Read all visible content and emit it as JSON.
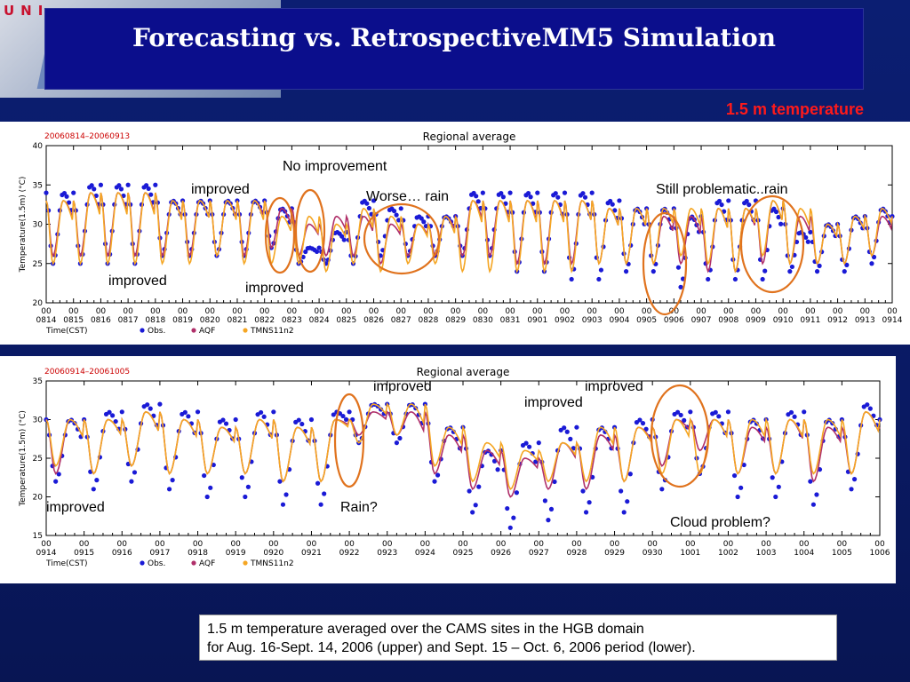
{
  "slide": {
    "title": "Forecasting vs. RetrospectiveMM5 Simulation",
    "subtitle": "1.5 m temperature",
    "logo_text": "UNI",
    "caption_line1": "1.5 m temperature averaged over the CAMS sites in the HGB domain",
    "caption_line2": "for  Aug. 16-Sept. 14, 2006  (upper) and Sept. 15 – Oct. 6, 2006 period (lower)."
  },
  "upper": {
    "annotations": [
      "No improvement",
      "improved",
      "Worse… rain",
      "Still problematic..rain",
      "improved",
      "improved"
    ]
  },
  "lower": {
    "annotations": [
      "improved",
      "improved",
      "improved",
      "improved",
      "Rain?",
      "Cloud problem?"
    ]
  },
  "colors": {
    "obs": "#1a1ad6",
    "aqf": "#b0306a",
    "tmns": "#f5a623",
    "circle": "#e0731e",
    "subtitle": "#ff1a1a"
  },
  "chart_data": [
    {
      "type": "line",
      "date_range": "20060814–20060913",
      "title": "Regional average",
      "xlabel": "Time(CST)",
      "ylabel": "Temperature(1.5m) (°C)",
      "ylim": [
        20,
        40
      ],
      "yticks": [
        20,
        25,
        30,
        35,
        40
      ],
      "xticks": [
        "0814",
        "0815",
        "0816",
        "0817",
        "0818",
        "0819",
        "0820",
        "0821",
        "0822",
        "0823",
        "0824",
        "0825",
        "0826",
        "0827",
        "0828",
        "0829",
        "0830",
        "0831",
        "0901",
        "0902",
        "0903",
        "0904",
        "0905",
        "0906",
        "0907",
        "0908",
        "0909",
        "0910",
        "0911",
        "0912",
        "0913",
        "0914"
      ],
      "xtick_hour": "00",
      "legend": [
        "Obs.",
        "AQF",
        "TMNS11n2"
      ],
      "series": [
        {
          "name": "Obs.",
          "daily_max": [
            34,
            35,
            35,
            35,
            33,
            33,
            33,
            33,
            32,
            27,
            29,
            33,
            32,
            31,
            31,
            34,
            34,
            34,
            34,
            34,
            33,
            32,
            32,
            31,
            33,
            33,
            32,
            29,
            30,
            31,
            32
          ],
          "daily_min": [
            25,
            25,
            25,
            25,
            26,
            26,
            26,
            26,
            27,
            25,
            25,
            25,
            26,
            26,
            26,
            26,
            26,
            24,
            24,
            23,
            23,
            24,
            24,
            22,
            23,
            23,
            23,
            24,
            24,
            24,
            25
          ]
        },
        {
          "name": "AQF",
          "daily_max": [
            33,
            34,
            34,
            34,
            33,
            33,
            33,
            33,
            32,
            30,
            31,
            31,
            30,
            30,
            31,
            33,
            33,
            33,
            33,
            33,
            32,
            32,
            31,
            31,
            32,
            32,
            33,
            31,
            30,
            31,
            31
          ],
          "daily_min": [
            26,
            26,
            26,
            26,
            26,
            26,
            26,
            26,
            27,
            26,
            26,
            26,
            25,
            26,
            26,
            26,
            26,
            25,
            25,
            25,
            25,
            25,
            25,
            25,
            24,
            24,
            25,
            25,
            25,
            25,
            26
          ]
        },
        {
          "name": "TMNS11n2",
          "daily_max": [
            33,
            34,
            34,
            34,
            33,
            33,
            33,
            33,
            31,
            31,
            30,
            32,
            31,
            30,
            31,
            33,
            33,
            33,
            33,
            33,
            32,
            32,
            32,
            32,
            32,
            32,
            33,
            32,
            30,
            31,
            32
          ],
          "daily_min": [
            25,
            25,
            25,
            25,
            25,
            25,
            26,
            25,
            25,
            25,
            24,
            25,
            24,
            25,
            25,
            24,
            24,
            24,
            24,
            24,
            25,
            25,
            25,
            26,
            25,
            24,
            26,
            25,
            25,
            25,
            26
          ]
        }
      ]
    },
    {
      "type": "line",
      "date_range": "20060914–20061005",
      "title": "Regional average",
      "xlabel": "Time(CST)",
      "ylabel": "Temperature(1.5m) (°C)",
      "ylim": [
        15,
        35
      ],
      "yticks": [
        15,
        20,
        25,
        30,
        35
      ],
      "xticks": [
        "0914",
        "0915",
        "0916",
        "0917",
        "0918",
        "0919",
        "0920",
        "0921",
        "0922",
        "0923",
        "0924",
        "0925",
        "0926",
        "0927",
        "0928",
        "0929",
        "0930",
        "1001",
        "1002",
        "1003",
        "1004",
        "1005",
        "1006"
      ],
      "xtick_hour": "00",
      "legend": [
        "Obs.",
        "AQF",
        "TMNS11n2"
      ],
      "series": [
        {
          "name": "Obs.",
          "daily_max": [
            30,
            31,
            32,
            31,
            30,
            31,
            30,
            31,
            32,
            32,
            29,
            26,
            27,
            29,
            29,
            30,
            31,
            31,
            30,
            31,
            30,
            32
          ],
          "daily_min": [
            22,
            21,
            22,
            21,
            20,
            20,
            19,
            19,
            27,
            27,
            22,
            18,
            16,
            17,
            18,
            18,
            21,
            23,
            20,
            20,
            19,
            21
          ]
        },
        {
          "name": "AQF",
          "daily_max": [
            30,
            30,
            31,
            30,
            29,
            30,
            29,
            30,
            31,
            31,
            28,
            26,
            25,
            27,
            28,
            29,
            30,
            30,
            29,
            30,
            29,
            31
          ],
          "daily_min": [
            23,
            23,
            24,
            23,
            23,
            23,
            22,
            22,
            28,
            28,
            23,
            21,
            20,
            21,
            21,
            22,
            24,
            26,
            23,
            23,
            22,
            23
          ]
        },
        {
          "name": "TMNS11n2",
          "daily_max": [
            30,
            30,
            31,
            30,
            29,
            30,
            29,
            30,
            32,
            32,
            29,
            27,
            26,
            27,
            29,
            29,
            30,
            30,
            30,
            30,
            30,
            31
          ],
          "daily_min": [
            24,
            23,
            24,
            23,
            23,
            23,
            22,
            22,
            27,
            28,
            24,
            22,
            21,
            22,
            22,
            22,
            23,
            23,
            23,
            23,
            23,
            23
          ]
        }
      ]
    }
  ]
}
